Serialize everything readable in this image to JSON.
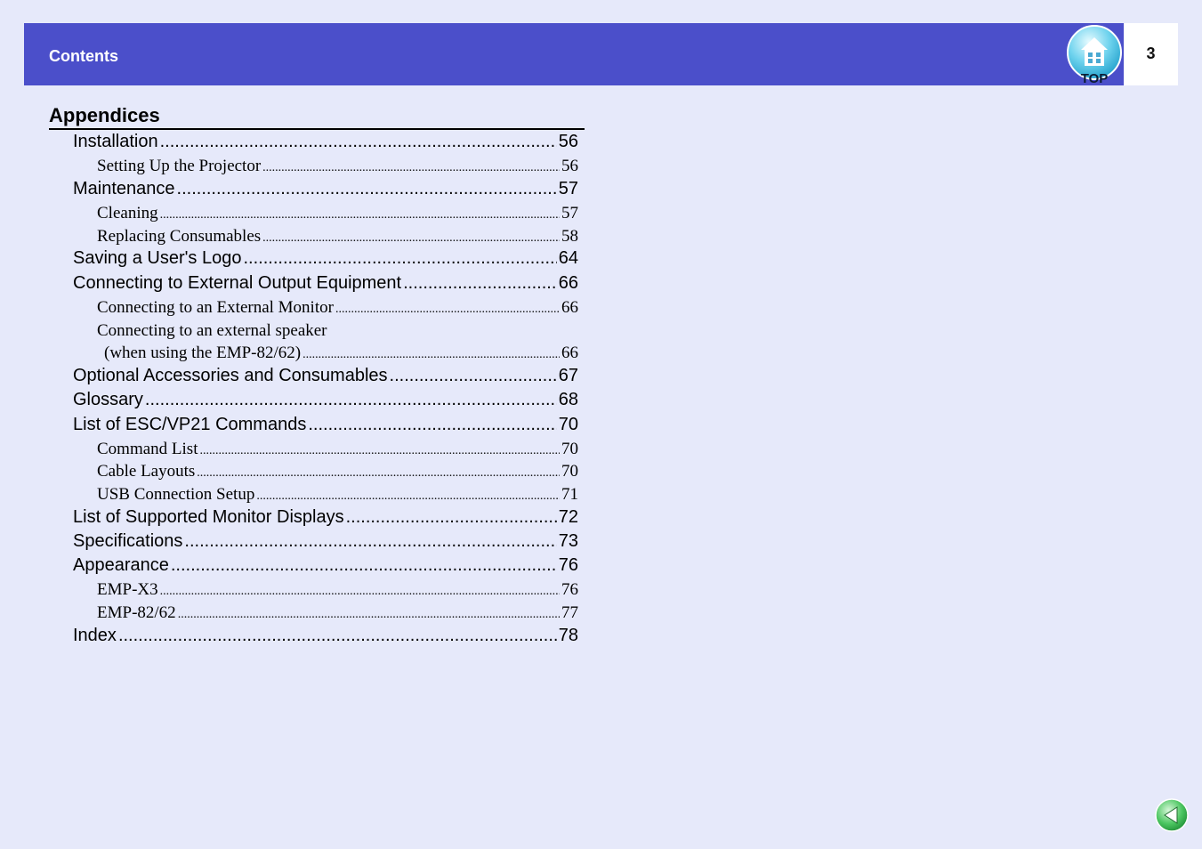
{
  "header": {
    "title": "Contents",
    "page_number": "3",
    "top_button_label": "TOP"
  },
  "section": {
    "title": "Appendices"
  },
  "toc": [
    {
      "level": 1,
      "label": "Installation",
      "page": "56"
    },
    {
      "level": 2,
      "label": "Setting Up the Projector",
      "page": "56"
    },
    {
      "level": 1,
      "label": "Maintenance",
      "page": "57"
    },
    {
      "level": 2,
      "label": "Cleaning",
      "page": "57"
    },
    {
      "level": 2,
      "label": "Replacing Consumables",
      "page": "58"
    },
    {
      "level": 1,
      "label": "Saving a User's Logo",
      "page": "64"
    },
    {
      "level": 1,
      "label": "Connecting to External Output Equipment",
      "page": "66"
    },
    {
      "level": 2,
      "label": "Connecting to an External Monitor",
      "page": "66"
    },
    {
      "level": 2,
      "label": "Connecting to an external speaker",
      "label_cont": "(when using the EMP-82/62)",
      "page": "66"
    },
    {
      "level": 1,
      "label": "Optional Accessories and Consumables",
      "page": "67"
    },
    {
      "level": 1,
      "label": "Glossary",
      "page": "68"
    },
    {
      "level": 1,
      "label": "List of ESC/VP21 Commands",
      "page": "70"
    },
    {
      "level": 2,
      "label": "Command List",
      "page": "70"
    },
    {
      "level": 2,
      "label": "Cable Layouts",
      "page": "70"
    },
    {
      "level": 2,
      "label": "USB Connection Setup",
      "page": "71"
    },
    {
      "level": 1,
      "label": "List of Supported Monitor Displays",
      "page": "72"
    },
    {
      "level": 1,
      "label": "Specifications",
      "page": "73"
    },
    {
      "level": 1,
      "label": "Appearance",
      "page": "76"
    },
    {
      "level": 2,
      "label": "EMP-X3",
      "page": "76"
    },
    {
      "level": 2,
      "label": "EMP-82/62",
      "page": "77"
    },
    {
      "level": 1,
      "label": "Index",
      "page": "78"
    }
  ],
  "colors": {
    "background": "#e6e9fa",
    "header_bar": "#4b4fca",
    "back_button": "#2bb24a"
  },
  "icons": {
    "top_button": "home-top-icon",
    "back_button": "back-arrow-icon"
  }
}
